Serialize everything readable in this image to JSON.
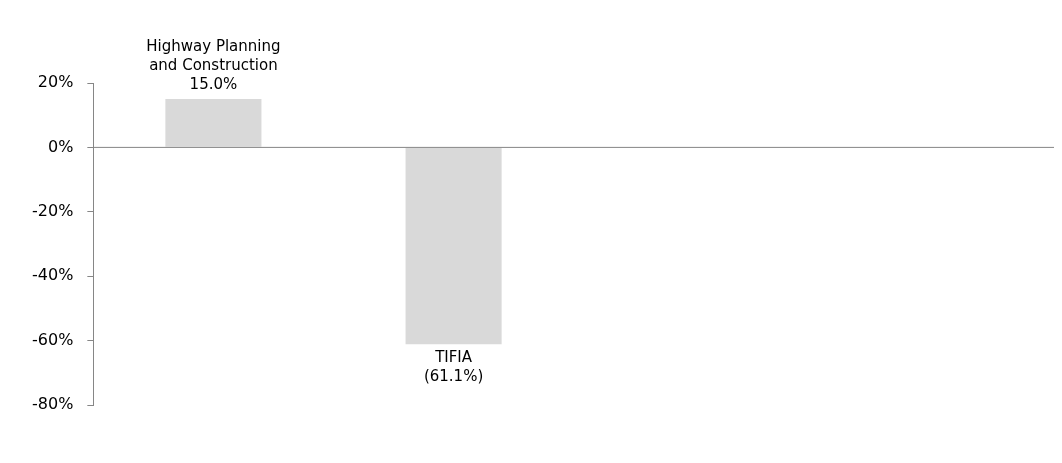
{
  "chart_data": {
    "type": "bar",
    "categories": [
      "Highway Planning and Construction",
      "TIFIA",
      null,
      null
    ],
    "values": [
      15,
      -61.1,
      null,
      null
    ],
    "value_labels": [
      "15.0%",
      "(61.1%)",
      null,
      null
    ],
    "color": "#d9d9d9",
    "ylim": [
      -80,
      20
    ],
    "yticks": [
      {
        "value": -80,
        "label": "-80%"
      },
      {
        "value": -60,
        "label": "-60%"
      },
      {
        "value": -40,
        "label": "-40%"
      },
      {
        "value": -20,
        "label": "-20%"
      },
      {
        "value": 0,
        "label": "0%"
      },
      {
        "value": 20,
        "label": "20%"
      }
    ],
    "ref_lines": [
      {
        "axis": "y",
        "value": 0,
        "color": "#868686"
      }
    ],
    "grid": false,
    "legend": false
  }
}
